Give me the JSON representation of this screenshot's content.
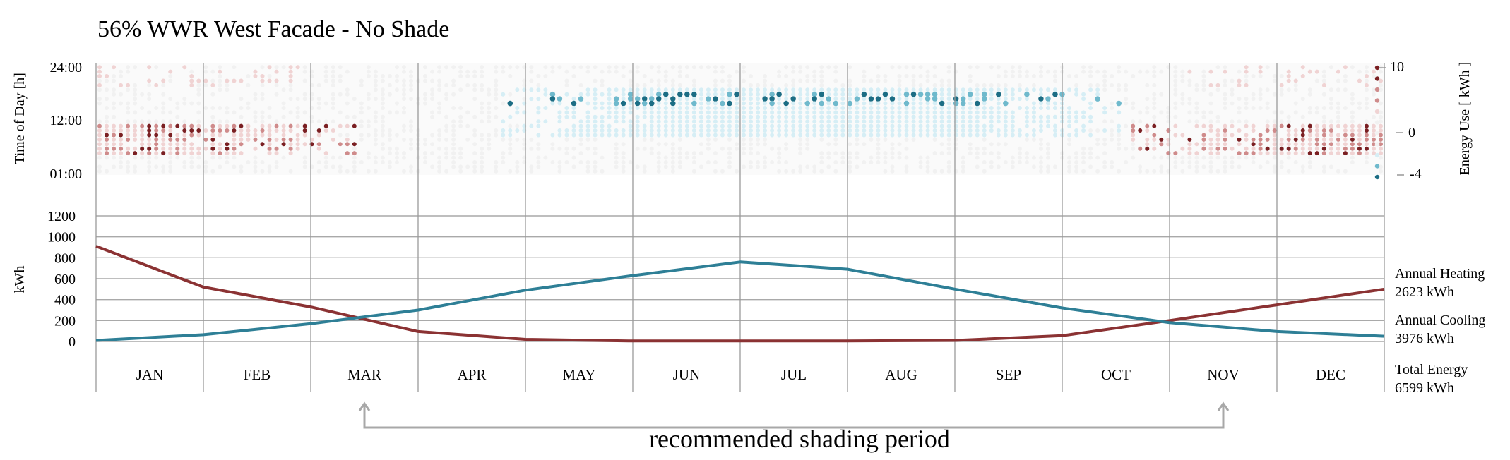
{
  "chart_data": [
    {
      "type": "heatmap",
      "title": "56% WWR West Facade - No Shade",
      "ylabel": "Time of Day [h]",
      "y_ticks": [
        "24:00",
        "12:00",
        "01:00"
      ],
      "colorbar": {
        "label": "Energy Use [ kWh ]",
        "ticks": [
          "10",
          "0",
          "-4"
        ],
        "range": [
          -4,
          10
        ]
      },
      "colors": {
        "heat_strong": "#7a1f22",
        "heat_mid": "#cf8b8b",
        "heat_light": "#f0d3d3",
        "neutral": "#f1f1f1",
        "cool_light": "#d6eef5",
        "cool_mid": "#6fb9cc",
        "cool_strong": "#1c6d84"
      }
    },
    {
      "type": "line",
      "ylabel": "kWh",
      "ylim": [
        0,
        1200
      ],
      "y_ticks": [
        0,
        200,
        400,
        600,
        800,
        1000,
        1200
      ],
      "categories": [
        "JAN",
        "FEB",
        "MAR",
        "APR",
        "MAY",
        "JUN",
        "JUL",
        "AUG",
        "SEP",
        "OCT",
        "NOV",
        "DEC"
      ],
      "x": [
        0,
        1,
        2,
        3,
        4,
        5,
        6,
        7,
        8,
        9,
        10,
        11,
        12
      ],
      "series": [
        {
          "key": "heating",
          "color": "#8b3233",
          "values": [
            910,
            520,
            330,
            95,
            20,
            5,
            5,
            5,
            10,
            55,
            200,
            350,
            500
          ]
        },
        {
          "key": "cooling",
          "color": "#2e7f96",
          "values": [
            10,
            65,
            170,
            300,
            490,
            630,
            760,
            690,
            500,
            320,
            180,
            95,
            50
          ]
        }
      ],
      "annotations": {
        "annual_heating_label": "Annual Heating",
        "annual_heating_value": "2623 kWh",
        "annual_cooling_label": "Annual Cooling",
        "annual_cooling_value": "3976 kWh",
        "total_label": "Total Energy",
        "total_value": "6599 kWh"
      },
      "shading_period": {
        "text": "recommended shading period",
        "start_month": "MAR",
        "end_month": "NOV",
        "color": "#a8a8a8"
      }
    }
  ]
}
